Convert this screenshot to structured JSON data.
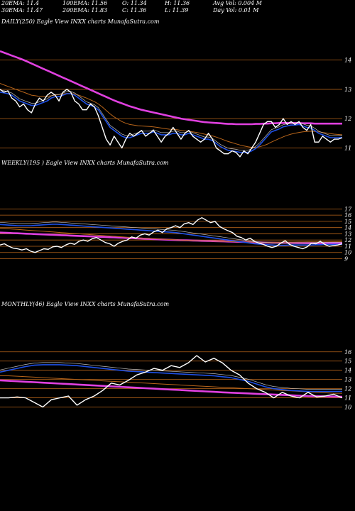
{
  "header": {
    "r1c1": "20EMA: 11.4",
    "r1c2": "100EMA: 11.56",
    "r1c3": "O: 11.34",
    "r1c4": "H: 11.36",
    "r1c5": "Avg Vol: 0.004  M",
    "r2c1": "30EMA: 11.47",
    "r2c2": "200EMA: 11.83",
    "r2c3": "C: 11.36",
    "r2c4": "L: 11.39",
    "r2c5": "Day Vol: 0.01 M"
  },
  "colors": {
    "price": "#ffffff",
    "ema_fast": "#1e50e6",
    "ema_slow": "#e040e0",
    "ema_brown": "#b8651a",
    "hline": "#b8651a"
  },
  "chart_data": [
    {
      "type": "line",
      "label": "DAILY(250) Eagle  View  INXX  charts MunafaSutra.com",
      "ylim": [
        10.6,
        14.35
      ],
      "yticks": [
        11,
        12,
        13,
        14
      ],
      "series": [
        {
          "values": [
            13.0,
            12.9,
            12.95,
            12.7,
            12.6,
            12.4,
            12.5,
            12.3,
            12.2,
            12.5,
            12.7,
            12.6,
            12.8,
            12.9,
            12.8,
            12.6,
            12.9,
            13.0,
            12.9,
            12.6,
            12.5,
            12.3,
            12.3,
            12.5,
            12.4,
            12.1,
            11.7,
            11.3,
            11.1,
            11.4,
            11.2,
            11.0,
            11.3,
            11.5,
            11.4,
            11.5,
            11.6,
            11.4,
            11.5,
            11.6,
            11.4,
            11.2,
            11.4,
            11.5,
            11.7,
            11.5,
            11.3,
            11.5,
            11.6,
            11.4,
            11.3,
            11.2,
            11.3,
            11.5,
            11.3,
            11.0,
            10.9,
            10.8,
            10.8,
            10.9,
            10.85,
            10.7,
            10.9,
            10.8,
            11.0,
            11.2,
            11.5,
            11.8,
            11.9,
            11.9,
            11.7,
            11.8,
            12.0,
            11.8,
            11.9,
            11.8,
            11.9,
            11.7,
            11.6,
            11.8,
            11.2,
            11.2,
            11.4,
            11.3,
            11.2,
            11.3,
            11.3,
            11.35
          ]
        },
        {
          "values": [
            12.9,
            12.88,
            12.85,
            12.8,
            12.7,
            12.6,
            12.55,
            12.5,
            12.45,
            12.45,
            12.5,
            12.55,
            12.6,
            12.7,
            12.75,
            12.75,
            12.8,
            12.85,
            12.85,
            12.8,
            12.7,
            12.6,
            12.5,
            12.45,
            12.4,
            12.3,
            12.1,
            11.9,
            11.7,
            11.6,
            11.5,
            11.4,
            11.35,
            11.35,
            11.4,
            11.45,
            11.5,
            11.5,
            11.5,
            11.55,
            11.5,
            11.45,
            11.45,
            11.45,
            11.5,
            11.5,
            11.45,
            11.45,
            11.5,
            11.45,
            11.4,
            11.35,
            11.3,
            11.3,
            11.25,
            11.15,
            11.05,
            10.98,
            10.92,
            10.9,
            10.88,
            10.85,
            10.85,
            10.85,
            10.9,
            10.98,
            11.1,
            11.25,
            11.4,
            11.55,
            11.6,
            11.65,
            11.72,
            11.75,
            11.78,
            11.78,
            11.8,
            11.75,
            11.7,
            11.68,
            11.6,
            11.5,
            11.45,
            11.4,
            11.35,
            11.35,
            11.35,
            11.36
          ]
        },
        {
          "values": [
            13.2,
            13.15,
            13.1,
            13.05,
            13.0,
            12.95,
            12.9,
            12.85,
            12.8,
            12.78,
            12.76,
            12.75,
            12.76,
            12.78,
            12.8,
            12.82,
            12.84,
            12.86,
            12.86,
            12.84,
            12.8,
            12.75,
            12.7,
            12.64,
            12.58,
            12.5,
            12.4,
            12.28,
            12.16,
            12.06,
            11.98,
            11.9,
            11.84,
            11.8,
            11.78,
            11.76,
            11.75,
            11.74,
            11.73,
            11.72,
            11.7,
            11.68,
            11.66,
            11.64,
            11.63,
            11.62,
            11.6,
            11.58,
            11.57,
            11.55,
            11.53,
            11.5,
            11.47,
            11.44,
            11.41,
            11.37,
            11.32,
            11.27,
            11.22,
            11.18,
            11.14,
            11.1,
            11.07,
            11.04,
            11.02,
            11.02,
            11.04,
            11.08,
            11.13,
            11.2,
            11.26,
            11.32,
            11.38,
            11.43,
            11.47,
            11.5,
            11.53,
            11.55,
            11.56,
            11.57,
            11.56,
            11.55,
            11.53,
            11.51,
            11.49,
            11.47,
            11.46,
            11.45
          ]
        },
        {
          "values": [
            14.3,
            14.25,
            14.2,
            14.15,
            14.1,
            14.05,
            14.0,
            13.94,
            13.88,
            13.82,
            13.76,
            13.7,
            13.64,
            13.58,
            13.52,
            13.46,
            13.4,
            13.34,
            13.28,
            13.22,
            13.16,
            13.1,
            13.04,
            12.98,
            12.92,
            12.86,
            12.8,
            12.74,
            12.68,
            12.62,
            12.57,
            12.52,
            12.47,
            12.42,
            12.38,
            12.34,
            12.3,
            12.27,
            12.24,
            12.21,
            12.18,
            12.15,
            12.12,
            12.09,
            12.06,
            12.03,
            12.0,
            11.98,
            11.96,
            11.94,
            11.92,
            11.9,
            11.88,
            11.87,
            11.86,
            11.85,
            11.84,
            11.83,
            11.82,
            11.82,
            11.81,
            11.81,
            11.81,
            11.81,
            11.81,
            11.82,
            11.82,
            11.83,
            11.83,
            11.84,
            11.84,
            11.85,
            11.85,
            11.85,
            11.85,
            11.85,
            11.85,
            11.84,
            11.84,
            11.84,
            11.83,
            11.83,
            11.83,
            11.83,
            11.83,
            11.83,
            11.83,
            11.83
          ]
        }
      ]
    },
    {
      "type": "line",
      "label": "WEEKLY(195                ) Eagle  View  INXX  charts MunafaSutra.com",
      "ylim": [
        8.6,
        17.5
      ],
      "yticks": [
        9,
        10,
        11,
        12,
        13,
        14,
        15,
        16,
        17
      ],
      "series": [
        {
          "values": [
            11.2,
            11.4,
            11.0,
            10.7,
            10.6,
            10.4,
            10.6,
            10.2,
            10.0,
            10.3,
            10.6,
            10.5,
            10.9,
            11.0,
            10.8,
            11.2,
            11.5,
            11.3,
            11.8,
            12.0,
            11.8,
            12.2,
            12.4,
            12.0,
            11.6,
            11.4,
            11.0,
            11.5,
            11.8,
            12.0,
            12.5,
            12.3,
            12.8,
            13.0,
            12.8,
            13.3,
            13.6,
            13.2,
            13.8,
            14.0,
            14.3,
            14.0,
            14.6,
            14.8,
            14.5,
            15.2,
            15.6,
            15.2,
            14.8,
            15.0,
            14.2,
            13.8,
            13.5,
            13.2,
            12.6,
            12.4,
            12.0,
            12.3,
            11.8,
            11.5,
            11.3,
            11.0,
            10.8,
            11.0,
            11.5,
            11.9,
            11.3,
            11.0,
            10.8,
            10.6,
            10.9,
            11.5,
            11.4,
            11.8,
            11.3,
            11.0,
            11.1,
            11.2,
            11.4
          ]
        },
        {
          "values": [
            14.5,
            14.45,
            14.4,
            14.35,
            14.3,
            14.3,
            14.3,
            14.3,
            14.35,
            14.4,
            14.45,
            14.5,
            14.55,
            14.55,
            14.5,
            14.45,
            14.4,
            14.35,
            14.3,
            14.25,
            14.2,
            14.15,
            14.1,
            14.05,
            14.0,
            13.95,
            13.9,
            13.85,
            13.8,
            13.75,
            13.7,
            13.65,
            13.6,
            13.55,
            13.5,
            13.45,
            13.4,
            13.35,
            13.3,
            13.25,
            13.2,
            13.1,
            13.0,
            12.9,
            12.8,
            12.7,
            12.6,
            12.5,
            12.4,
            12.3,
            12.2,
            12.1,
            12.0,
            11.9,
            11.8,
            11.7,
            11.6,
            11.5,
            11.4,
            11.35,
            11.3,
            11.25,
            11.2,
            11.15,
            11.15,
            11.15,
            11.2,
            11.2,
            11.2,
            11.2,
            11.2,
            11.2,
            11.25,
            11.25,
            11.3,
            11.3,
            11.3,
            11.3,
            11.3
          ]
        },
        {
          "values": [
            13.9,
            13.85,
            13.8,
            13.75,
            13.7,
            13.65,
            13.6,
            13.55,
            13.5,
            13.45,
            13.4,
            13.35,
            13.3,
            13.25,
            13.2,
            13.15,
            13.1,
            13.05,
            13.0,
            12.95,
            12.9,
            12.85,
            12.8,
            12.75,
            12.7,
            12.65,
            12.6,
            12.55,
            12.5,
            12.46,
            12.42,
            12.38,
            12.34,
            12.3,
            12.26,
            12.22,
            12.18,
            12.14,
            12.1,
            12.07,
            12.04,
            12.01,
            11.98,
            11.95,
            11.92,
            11.9,
            11.88,
            11.86,
            11.84,
            11.82,
            11.8,
            11.78,
            11.76,
            11.74,
            11.72,
            11.7,
            11.69,
            11.68,
            11.67,
            11.66,
            11.66,
            11.66,
            11.66,
            11.66,
            11.67,
            11.67,
            11.68,
            11.68,
            11.69,
            11.69,
            11.7,
            11.7,
            11.71,
            11.71,
            11.72,
            11.72,
            11.73,
            11.73,
            11.73
          ]
        },
        {
          "values": [
            13.2,
            13.17,
            13.14,
            13.11,
            13.08,
            13.05,
            13.02,
            12.99,
            12.96,
            12.93,
            12.9,
            12.87,
            12.84,
            12.81,
            12.78,
            12.75,
            12.72,
            12.69,
            12.66,
            12.63,
            12.6,
            12.57,
            12.54,
            12.51,
            12.48,
            12.45,
            12.42,
            12.39,
            12.36,
            12.33,
            12.3,
            12.27,
            12.24,
            12.21,
            12.18,
            12.15,
            12.12,
            12.09,
            12.06,
            12.03,
            12.0,
            11.98,
            11.96,
            11.94,
            11.92,
            11.9,
            11.88,
            11.86,
            11.84,
            11.82,
            11.8,
            11.78,
            11.76,
            11.74,
            11.72,
            11.7,
            11.68,
            11.66,
            11.64,
            11.62,
            11.6,
            11.59,
            11.58,
            11.57,
            11.56,
            11.55,
            11.54,
            11.53,
            11.52,
            11.51,
            11.5,
            11.5,
            11.5,
            11.5,
            11.5,
            11.5,
            11.5,
            11.5,
            11.5
          ]
        }
      ]
    },
    {
      "type": "line",
      "label": "MONTHLY(46) Eagle  View  INXX  charts MunafaSutra.com",
      "ylim": [
        9.5,
        16.6
      ],
      "yticks": [
        10,
        11,
        12,
        13,
        14,
        15,
        16
      ],
      "series": [
        {
          "values": [
            11.0,
            11.0,
            11.1,
            11.0,
            10.5,
            10.0,
            10.8,
            11.0,
            11.2,
            10.2,
            10.8,
            11.2,
            11.8,
            12.6,
            12.4,
            12.9,
            13.5,
            13.8,
            14.2,
            14.0,
            14.5,
            14.3,
            14.8,
            15.6,
            14.9,
            15.3,
            14.8,
            14.0,
            13.5,
            12.6,
            12.0,
            11.6,
            11.0,
            11.6,
            11.2,
            11.0,
            11.6,
            11.1,
            11.2,
            11.4,
            11.0
          ]
        },
        {
          "values": [
            13.8,
            14.0,
            14.2,
            14.4,
            14.55,
            14.6,
            14.6,
            14.6,
            14.55,
            14.5,
            14.4,
            14.3,
            14.2,
            14.1,
            14.0,
            13.9,
            13.85,
            13.8,
            13.75,
            13.7,
            13.65,
            13.6,
            13.55,
            13.5,
            13.45,
            13.4,
            13.3,
            13.2,
            13.0,
            12.8,
            12.5,
            12.2,
            12.0,
            11.9,
            11.8,
            11.75,
            11.7,
            11.7,
            11.7,
            11.7,
            11.7
          ]
        },
        {
          "values": [
            13.4,
            13.4,
            13.35,
            13.3,
            13.25,
            13.2,
            13.15,
            13.1,
            13.05,
            13.0,
            12.95,
            12.9,
            12.85,
            12.8,
            12.75,
            12.7,
            12.65,
            12.6,
            12.55,
            12.5,
            12.45,
            12.4,
            12.35,
            12.3,
            12.25,
            12.2,
            12.15,
            12.1,
            12.05,
            12.0,
            11.95,
            11.9,
            11.85,
            11.8,
            11.75,
            11.7,
            11.65,
            11.6,
            11.55,
            11.5,
            11.5
          ]
        },
        {
          "values": [
            12.9,
            12.85,
            12.8,
            12.75,
            12.7,
            12.65,
            12.6,
            12.55,
            12.5,
            12.45,
            12.4,
            12.35,
            12.3,
            12.25,
            12.2,
            12.15,
            12.1,
            12.05,
            12.0,
            11.95,
            11.9,
            11.85,
            11.8,
            11.75,
            11.7,
            11.65,
            11.6,
            11.56,
            11.52,
            11.48,
            11.44,
            11.4,
            11.36,
            11.32,
            11.28,
            11.24,
            11.2,
            11.18,
            11.16,
            11.14,
            11.12
          ]
        }
      ]
    }
  ]
}
